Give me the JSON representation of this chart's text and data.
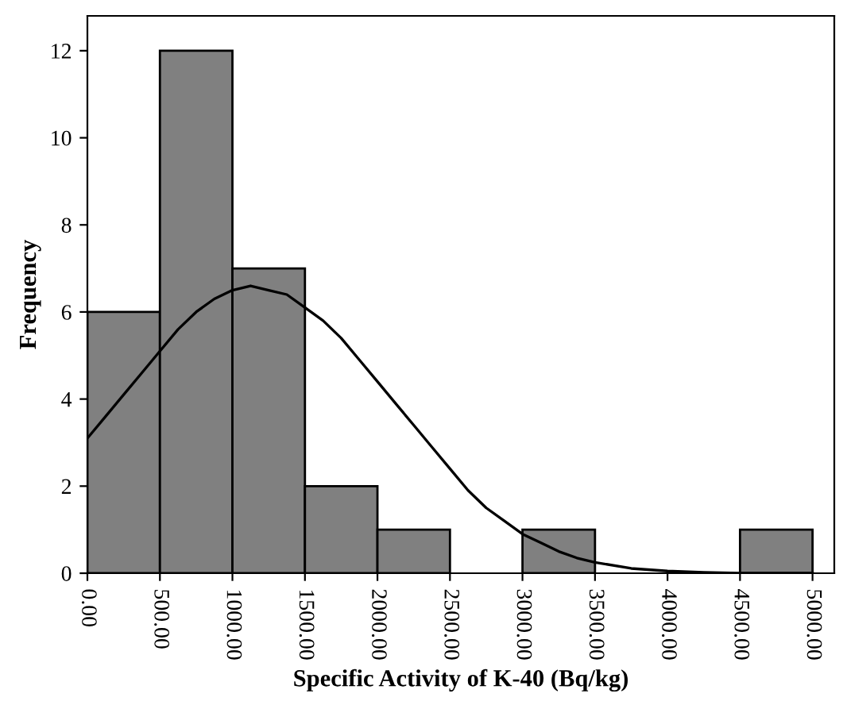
{
  "chart_data": {
    "type": "histogram",
    "xlabel": "Specific Activity of K-40 (Bq/kg)",
    "ylabel": "Frequency",
    "series": [
      {
        "color": "#808080",
        "bins": [
          0,
          500,
          1000,
          1500,
          2000,
          2500,
          3000,
          3500,
          4000,
          4500,
          5000
        ],
        "values": [
          6,
          12,
          7,
          2,
          1,
          0,
          1,
          0,
          0,
          1
        ]
      },
      {
        "type": "line",
        "color": "#000000",
        "x": [
          0,
          125,
          250,
          375,
          500,
          625,
          750,
          875,
          1000,
          1125,
          1250,
          1375,
          1500,
          1625,
          1750,
          1875,
          2000,
          2125,
          2250,
          2375,
          2500,
          2625,
          2750,
          2875,
          3000,
          3125,
          3250,
          3375,
          3500,
          3750,
          4000,
          4250,
          4500,
          5000
        ],
        "values": [
          3.1,
          3.6,
          4.1,
          4.6,
          5.1,
          5.6,
          6.0,
          6.3,
          6.5,
          6.6,
          6.5,
          6.4,
          6.1,
          5.8,
          5.4,
          4.9,
          4.4,
          3.9,
          3.4,
          2.9,
          2.4,
          1.9,
          1.5,
          1.2,
          0.9,
          0.7,
          0.5,
          0.35,
          0.25,
          0.11,
          0.05,
          0.02,
          0,
          0
        ]
      }
    ],
    "xlim": [
      0,
      5150
    ],
    "ylim": [
      0,
      12.8
    ],
    "xticks": [
      {
        "value": 0,
        "label": "0.00"
      },
      {
        "value": 500,
        "label": "500.00"
      },
      {
        "value": 1000,
        "label": "1000.00"
      },
      {
        "value": 1500,
        "label": "1500.00"
      },
      {
        "value": 2000,
        "label": "2000.00"
      },
      {
        "value": 2500,
        "label": "2500.00"
      },
      {
        "value": 3000,
        "label": "3000.00"
      },
      {
        "value": 3500,
        "label": "3500.00"
      },
      {
        "value": 4000,
        "label": "4000.00"
      },
      {
        "value": 4500,
        "label": "4500.00"
      },
      {
        "value": 5000,
        "label": "5000.00"
      }
    ],
    "yticks": [
      0,
      2,
      4,
      6,
      8,
      10,
      12
    ],
    "grid": false,
    "legend": false
  }
}
